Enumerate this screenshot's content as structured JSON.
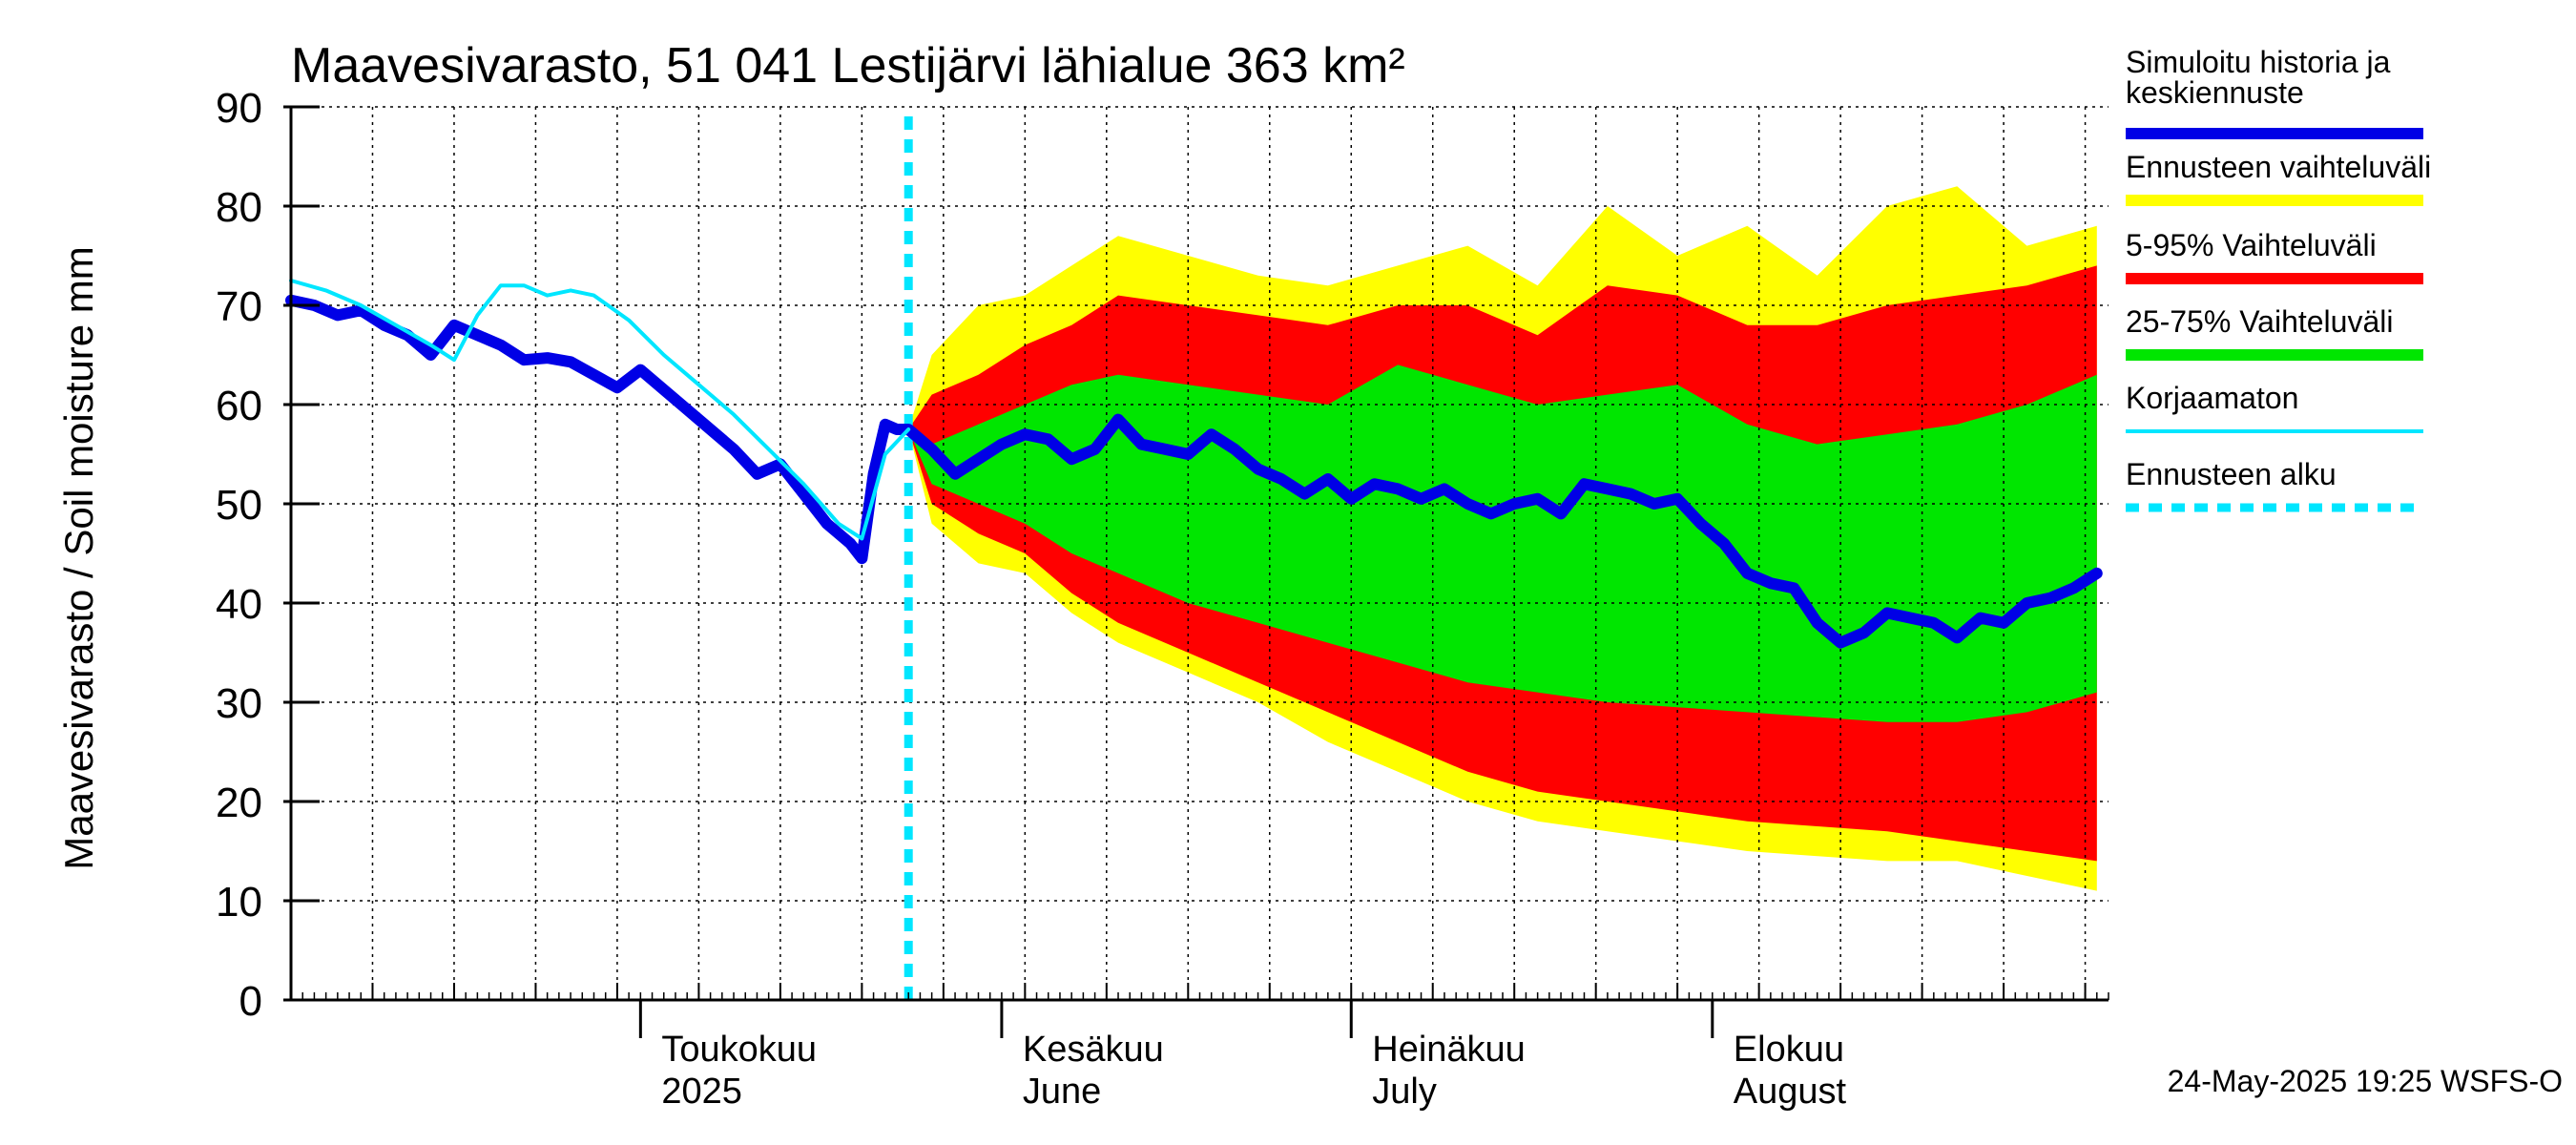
{
  "chart_data": {
    "type": "area",
    "title": "Maavesivarasto, 51 041 Lestijärvi lähialue 363 km²",
    "ylabel": "Maavesivarasto / Soil moisture   mm",
    "xlabel": "",
    "x_range": [
      "2025-04-01",
      "2025-09-04"
    ],
    "ylim": [
      0,
      90
    ],
    "y_ticks": [
      "0",
      "10",
      "20",
      "30",
      "40",
      "50",
      "60",
      "70",
      "80",
      "90"
    ],
    "x_month_labels": [
      {
        "date": "2025-05-01",
        "lines": [
          "Toukokuu",
          "2025"
        ]
      },
      {
        "date": "2025-06-01",
        "lines": [
          "Kesäkuu",
          "June"
        ]
      },
      {
        "date": "2025-07-01",
        "lines": [
          "Heinäkuu",
          "July"
        ]
      },
      {
        "date": "2025-08-01",
        "lines": [
          "Elokuu",
          "August"
        ]
      }
    ],
    "grid": true,
    "legend_position": "right",
    "forecast_start": "2025-05-24",
    "timestamp": "24-May-2025 19:25 WSFS-O",
    "colors": {
      "history": "#0000e6",
      "range_full": "#ffff00",
      "range_5_95": "#ff0000",
      "range_25_75": "#00e600",
      "uncorrected": "#00e6ff",
      "forecast_start": "#00e6ff"
    },
    "series": [
      {
        "name": "Simuloitu historia ja keskiennuste",
        "color": "#0000e6",
        "points": [
          [
            "2025-04-01",
            70.5
          ],
          [
            "2025-04-03",
            70
          ],
          [
            "2025-04-05",
            69
          ],
          [
            "2025-04-07",
            69.5
          ],
          [
            "2025-04-09",
            68
          ],
          [
            "2025-04-11",
            67
          ],
          [
            "2025-04-13",
            65
          ],
          [
            "2025-04-15",
            68
          ],
          [
            "2025-04-17",
            67
          ],
          [
            "2025-04-19",
            66
          ],
          [
            "2025-04-21",
            64.5
          ],
          [
            "2025-04-23",
            64.7
          ],
          [
            "2025-04-25",
            64.3
          ],
          [
            "2025-04-27",
            63
          ],
          [
            "2025-04-29",
            61.7
          ],
          [
            "2025-05-01",
            63.5
          ],
          [
            "2025-05-03",
            61.5
          ],
          [
            "2025-05-05",
            59.5
          ],
          [
            "2025-05-07",
            57.5
          ],
          [
            "2025-05-09",
            55.5
          ],
          [
            "2025-05-11",
            53
          ],
          [
            "2025-05-13",
            54
          ],
          [
            "2025-05-15",
            51
          ],
          [
            "2025-05-17",
            48
          ],
          [
            "2025-05-19",
            46
          ],
          [
            "2025-05-20",
            44.5
          ],
          [
            "2025-05-21",
            53
          ],
          [
            "2025-05-22",
            58
          ],
          [
            "2025-05-23",
            57.5
          ],
          [
            "2025-05-24",
            57.5
          ],
          [
            "2025-05-26",
            55.5
          ],
          [
            "2025-05-28",
            53
          ],
          [
            "2025-05-30",
            54.5
          ],
          [
            "2025-06-01",
            56
          ],
          [
            "2025-06-03",
            57
          ],
          [
            "2025-06-05",
            56.5
          ],
          [
            "2025-06-07",
            54.5
          ],
          [
            "2025-06-09",
            55.5
          ],
          [
            "2025-06-11",
            58.5
          ],
          [
            "2025-06-13",
            56
          ],
          [
            "2025-06-15",
            55.5
          ],
          [
            "2025-06-17",
            55
          ],
          [
            "2025-06-19",
            57
          ],
          [
            "2025-06-21",
            55.5
          ],
          [
            "2025-06-23",
            53.5
          ],
          [
            "2025-06-25",
            52.5
          ],
          [
            "2025-06-27",
            51
          ],
          [
            "2025-06-29",
            52.5
          ],
          [
            "2025-07-01",
            50.5
          ],
          [
            "2025-07-03",
            52
          ],
          [
            "2025-07-05",
            51.5
          ],
          [
            "2025-07-07",
            50.5
          ],
          [
            "2025-07-09",
            51.5
          ],
          [
            "2025-07-11",
            50
          ],
          [
            "2025-07-13",
            49
          ],
          [
            "2025-07-15",
            50
          ],
          [
            "2025-07-17",
            50.5
          ],
          [
            "2025-07-19",
            49
          ],
          [
            "2025-07-21",
            52
          ],
          [
            "2025-07-23",
            51.5
          ],
          [
            "2025-07-25",
            51
          ],
          [
            "2025-07-27",
            50
          ],
          [
            "2025-07-29",
            50.5
          ],
          [
            "2025-07-31",
            48
          ],
          [
            "2025-08-02",
            46
          ],
          [
            "2025-08-04",
            43
          ],
          [
            "2025-08-06",
            42
          ],
          [
            "2025-08-08",
            41.5
          ],
          [
            "2025-08-10",
            38
          ],
          [
            "2025-08-12",
            36
          ],
          [
            "2025-08-14",
            37
          ],
          [
            "2025-08-16",
            39
          ],
          [
            "2025-08-18",
            38.5
          ],
          [
            "2025-08-20",
            38
          ],
          [
            "2025-08-22",
            36.5
          ],
          [
            "2025-08-24",
            38.5
          ],
          [
            "2025-08-26",
            38
          ],
          [
            "2025-08-28",
            40
          ],
          [
            "2025-08-30",
            40.5
          ],
          [
            "2025-09-01",
            41.5
          ],
          [
            "2025-09-03",
            43
          ]
        ]
      },
      {
        "name": "Ennusteen vaihteluväli",
        "color": "#ffff00",
        "upper": [
          [
            "2025-05-24",
            57.5
          ],
          [
            "2025-05-26",
            65
          ],
          [
            "2025-05-30",
            70
          ],
          [
            "2025-06-03",
            71
          ],
          [
            "2025-06-07",
            74
          ],
          [
            "2025-06-11",
            77
          ],
          [
            "2025-06-17",
            75
          ],
          [
            "2025-06-23",
            73
          ],
          [
            "2025-06-29",
            72
          ],
          [
            "2025-07-05",
            74
          ],
          [
            "2025-07-11",
            76
          ],
          [
            "2025-07-17",
            72
          ],
          [
            "2025-07-23",
            80
          ],
          [
            "2025-07-29",
            75
          ],
          [
            "2025-08-04",
            78
          ],
          [
            "2025-08-10",
            73
          ],
          [
            "2025-08-16",
            80
          ],
          [
            "2025-08-22",
            82
          ],
          [
            "2025-08-28",
            76
          ],
          [
            "2025-09-03",
            78
          ]
        ],
        "lower": [
          [
            "2025-05-24",
            57.5
          ],
          [
            "2025-05-26",
            48
          ],
          [
            "2025-05-30",
            44
          ],
          [
            "2025-06-03",
            43
          ],
          [
            "2025-06-07",
            39
          ],
          [
            "2025-06-11",
            36
          ],
          [
            "2025-06-17",
            33
          ],
          [
            "2025-06-23",
            30
          ],
          [
            "2025-06-29",
            26
          ],
          [
            "2025-07-05",
            23
          ],
          [
            "2025-07-11",
            20
          ],
          [
            "2025-07-17",
            18
          ],
          [
            "2025-07-23",
            17
          ],
          [
            "2025-07-29",
            16
          ],
          [
            "2025-08-04",
            15
          ],
          [
            "2025-08-10",
            14.5
          ],
          [
            "2025-08-16",
            14
          ],
          [
            "2025-08-22",
            14
          ],
          [
            "2025-08-28",
            12.5
          ],
          [
            "2025-09-03",
            11
          ]
        ]
      },
      {
        "name": "5-95% Vaihteluväli",
        "color": "#ff0000",
        "upper": [
          [
            "2025-05-24",
            57.5
          ],
          [
            "2025-05-26",
            61
          ],
          [
            "2025-05-30",
            63
          ],
          [
            "2025-06-03",
            66
          ],
          [
            "2025-06-07",
            68
          ],
          [
            "2025-06-11",
            71
          ],
          [
            "2025-06-17",
            70
          ],
          [
            "2025-06-23",
            69
          ],
          [
            "2025-06-29",
            68
          ],
          [
            "2025-07-05",
            70
          ],
          [
            "2025-07-11",
            70
          ],
          [
            "2025-07-17",
            67
          ],
          [
            "2025-07-23",
            72
          ],
          [
            "2025-07-29",
            71
          ],
          [
            "2025-08-04",
            68
          ],
          [
            "2025-08-10",
            68
          ],
          [
            "2025-08-16",
            70
          ],
          [
            "2025-08-22",
            71
          ],
          [
            "2025-08-28",
            72
          ],
          [
            "2025-09-03",
            74
          ]
        ],
        "lower": [
          [
            "2025-05-24",
            57.5
          ],
          [
            "2025-05-26",
            50
          ],
          [
            "2025-05-30",
            47
          ],
          [
            "2025-06-03",
            45
          ],
          [
            "2025-06-07",
            41
          ],
          [
            "2025-06-11",
            38
          ],
          [
            "2025-06-17",
            35
          ],
          [
            "2025-06-23",
            32
          ],
          [
            "2025-06-29",
            29
          ],
          [
            "2025-07-05",
            26
          ],
          [
            "2025-07-11",
            23
          ],
          [
            "2025-07-17",
            21
          ],
          [
            "2025-07-23",
            20
          ],
          [
            "2025-07-29",
            19
          ],
          [
            "2025-08-04",
            18
          ],
          [
            "2025-08-10",
            17.5
          ],
          [
            "2025-08-16",
            17
          ],
          [
            "2025-08-22",
            16
          ],
          [
            "2025-08-28",
            15
          ],
          [
            "2025-09-03",
            14
          ]
        ]
      },
      {
        "name": "25-75% Vaihteluväli",
        "color": "#00e600",
        "upper": [
          [
            "2025-05-24",
            57.5
          ],
          [
            "2025-05-26",
            56
          ],
          [
            "2025-05-30",
            58
          ],
          [
            "2025-06-03",
            60
          ],
          [
            "2025-06-07",
            62
          ],
          [
            "2025-06-11",
            63
          ],
          [
            "2025-06-17",
            62
          ],
          [
            "2025-06-23",
            61
          ],
          [
            "2025-06-29",
            60
          ],
          [
            "2025-07-05",
            64
          ],
          [
            "2025-07-11",
            62
          ],
          [
            "2025-07-17",
            60
          ],
          [
            "2025-07-23",
            61
          ],
          [
            "2025-07-29",
            62
          ],
          [
            "2025-08-04",
            58
          ],
          [
            "2025-08-10",
            56
          ],
          [
            "2025-08-16",
            57
          ],
          [
            "2025-08-22",
            58
          ],
          [
            "2025-08-28",
            60
          ],
          [
            "2025-09-03",
            63
          ]
        ],
        "lower": [
          [
            "2025-05-24",
            57.5
          ],
          [
            "2025-05-26",
            52
          ],
          [
            "2025-05-30",
            50
          ],
          [
            "2025-06-03",
            48
          ],
          [
            "2025-06-07",
            45
          ],
          [
            "2025-06-11",
            43
          ],
          [
            "2025-06-17",
            40
          ],
          [
            "2025-06-23",
            38
          ],
          [
            "2025-06-29",
            36
          ],
          [
            "2025-07-05",
            34
          ],
          [
            "2025-07-11",
            32
          ],
          [
            "2025-07-17",
            31
          ],
          [
            "2025-07-23",
            30
          ],
          [
            "2025-07-29",
            29.5
          ],
          [
            "2025-08-04",
            29
          ],
          [
            "2025-08-10",
            28.5
          ],
          [
            "2025-08-16",
            28
          ],
          [
            "2025-08-22",
            28
          ],
          [
            "2025-08-28",
            29
          ],
          [
            "2025-09-03",
            31
          ]
        ]
      },
      {
        "name": "Korjaamaton",
        "color": "#00e6ff",
        "points": [
          [
            "2025-04-01",
            72.5
          ],
          [
            "2025-04-04",
            71.5
          ],
          [
            "2025-04-07",
            70
          ],
          [
            "2025-04-10",
            68
          ],
          [
            "2025-04-13",
            66
          ],
          [
            "2025-04-15",
            64.5
          ],
          [
            "2025-04-17",
            69
          ],
          [
            "2025-04-19",
            72
          ],
          [
            "2025-04-21",
            72
          ],
          [
            "2025-04-23",
            71
          ],
          [
            "2025-04-25",
            71.5
          ],
          [
            "2025-04-27",
            71
          ],
          [
            "2025-04-30",
            68.5
          ],
          [
            "2025-05-03",
            65
          ],
          [
            "2025-05-06",
            62
          ],
          [
            "2025-05-09",
            59
          ],
          [
            "2025-05-12",
            55.5
          ],
          [
            "2025-05-15",
            52
          ],
          [
            "2025-05-18",
            48
          ],
          [
            "2025-05-20",
            46.5
          ],
          [
            "2025-05-22",
            55
          ],
          [
            "2025-05-24",
            57.5
          ]
        ]
      },
      {
        "name": "Ennusteen alku",
        "color": "#00e6ff",
        "date": "2025-05-24"
      }
    ]
  }
}
